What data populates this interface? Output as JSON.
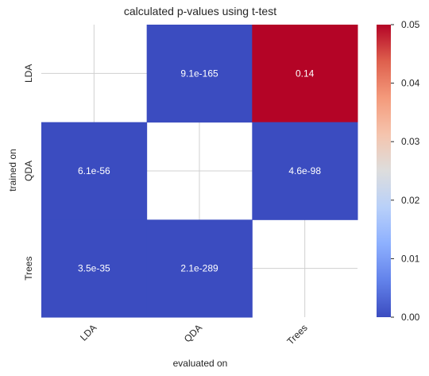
{
  "chart_data": {
    "type": "heatmap",
    "title": "calculated p-values using t-test",
    "xlabel": "evaluated on",
    "ylabel": "trained on",
    "x_categories": [
      "LDA",
      "QDA",
      "Trees"
    ],
    "y_categories": [
      "LDA",
      "QDA",
      "Trees"
    ],
    "values": [
      [
        null,
        9.1e-165,
        0.14
      ],
      [
        6.1e-56,
        null,
        4.6e-98
      ],
      [
        3.5e-35,
        2.1e-289,
        null
      ]
    ],
    "annotations": [
      [
        "",
        "9.1e-165",
        "0.14"
      ],
      [
        "6.1e-56",
        "",
        "4.6e-98"
      ],
      [
        "3.5e-35",
        "2.1e-289",
        ""
      ]
    ],
    "colormap": "coolwarm",
    "vmin": 0.0,
    "vmax": 0.05,
    "colorbar_ticks": [
      "0.00",
      "0.01",
      "0.02",
      "0.03",
      "0.04",
      "0.05"
    ],
    "colors": {
      "low": "#3b4cc0",
      "high": "#b40426"
    },
    "grid": true
  }
}
